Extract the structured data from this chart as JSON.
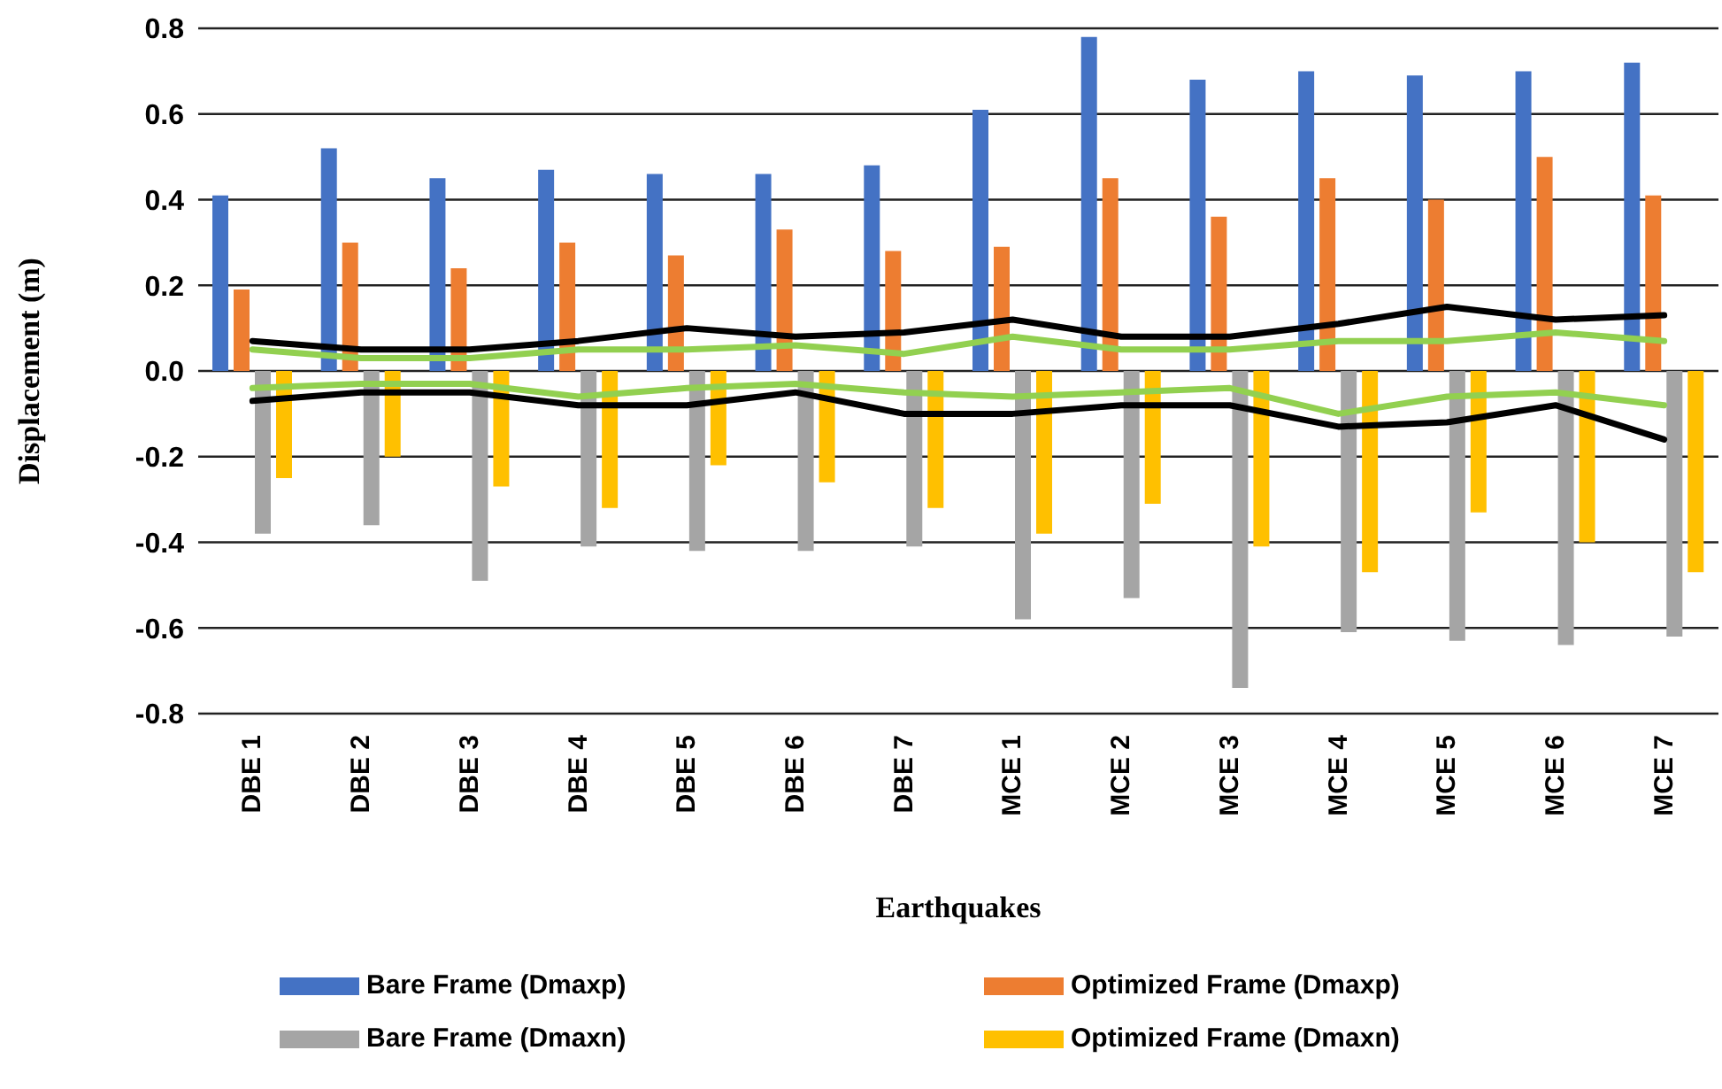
{
  "chart_data": {
    "type": "bar",
    "xlabel": "Earthquakes",
    "ylabel": "Displacement (m)",
    "categories": [
      "DBE 1",
      "DBE 2",
      "DBE 3",
      "DBE 4",
      "DBE 5",
      "DBE 6",
      "DBE 7",
      "MCE 1",
      "MCE 2",
      "MCE 3",
      "MCE 4",
      "MCE 5",
      "MCE 6",
      "MCE 7"
    ],
    "series": [
      {
        "name": "Bare Frame (Dmaxp)",
        "color": "#4472c4",
        "values": [
          0.41,
          0.52,
          0.45,
          0.47,
          0.46,
          0.46,
          0.48,
          0.61,
          0.78,
          0.68,
          0.7,
          0.69,
          0.7,
          0.72
        ]
      },
      {
        "name": "Optimized Frame (Dmaxp)",
        "color": "#ed7d31",
        "values": [
          0.19,
          0.3,
          0.24,
          0.3,
          0.27,
          0.33,
          0.28,
          0.29,
          0.45,
          0.36,
          0.45,
          0.4,
          0.5,
          0.41
        ]
      },
      {
        "name": "Bare Frame (Dmaxn)",
        "color": "#a5a5a5",
        "values": [
          -0.38,
          -0.36,
          -0.49,
          -0.41,
          -0.42,
          -0.42,
          -0.41,
          -0.58,
          -0.53,
          -0.74,
          -0.61,
          -0.63,
          -0.64,
          -0.62
        ]
      },
      {
        "name": "Optimized Frame (Dmaxn)",
        "color": "#ffc000",
        "values": [
          -0.25,
          -0.2,
          -0.27,
          -0.32,
          -0.22,
          -0.26,
          -0.32,
          -0.38,
          -0.31,
          -0.41,
          -0.47,
          -0.33,
          -0.4,
          -0.47
        ]
      },
      {
        "type": "line",
        "color": "#000000",
        "values": [
          0.07,
          0.05,
          0.05,
          0.07,
          0.1,
          0.08,
          0.09,
          0.12,
          0.08,
          0.08,
          0.11,
          0.15,
          0.12,
          0.13
        ]
      },
      {
        "type": "line",
        "color": "#92d050",
        "values": [
          0.05,
          0.03,
          0.03,
          0.05,
          0.05,
          0.06,
          0.04,
          0.08,
          0.05,
          0.05,
          0.07,
          0.07,
          0.09,
          0.07
        ]
      },
      {
        "type": "line",
        "color": "#000000",
        "values": [
          -0.07,
          -0.05,
          -0.05,
          -0.08,
          -0.08,
          -0.05,
          -0.1,
          -0.1,
          -0.08,
          -0.08,
          -0.13,
          -0.12,
          -0.08,
          -0.16
        ]
      },
      {
        "type": "line",
        "color": "#92d050",
        "values": [
          -0.04,
          -0.03,
          -0.03,
          -0.06,
          -0.04,
          -0.03,
          -0.05,
          -0.06,
          -0.05,
          -0.04,
          -0.1,
          -0.06,
          -0.05,
          -0.08
        ]
      }
    ],
    "ylim": [
      -0.8,
      0.8
    ],
    "yticks": [
      -0.8,
      -0.6,
      -0.4,
      -0.2,
      {
        "value": 0,
        "label": "0.0"
      },
      0.2,
      0.4,
      0.6,
      0.8
    ],
    "grid": "y",
    "legend": "bottom"
  }
}
